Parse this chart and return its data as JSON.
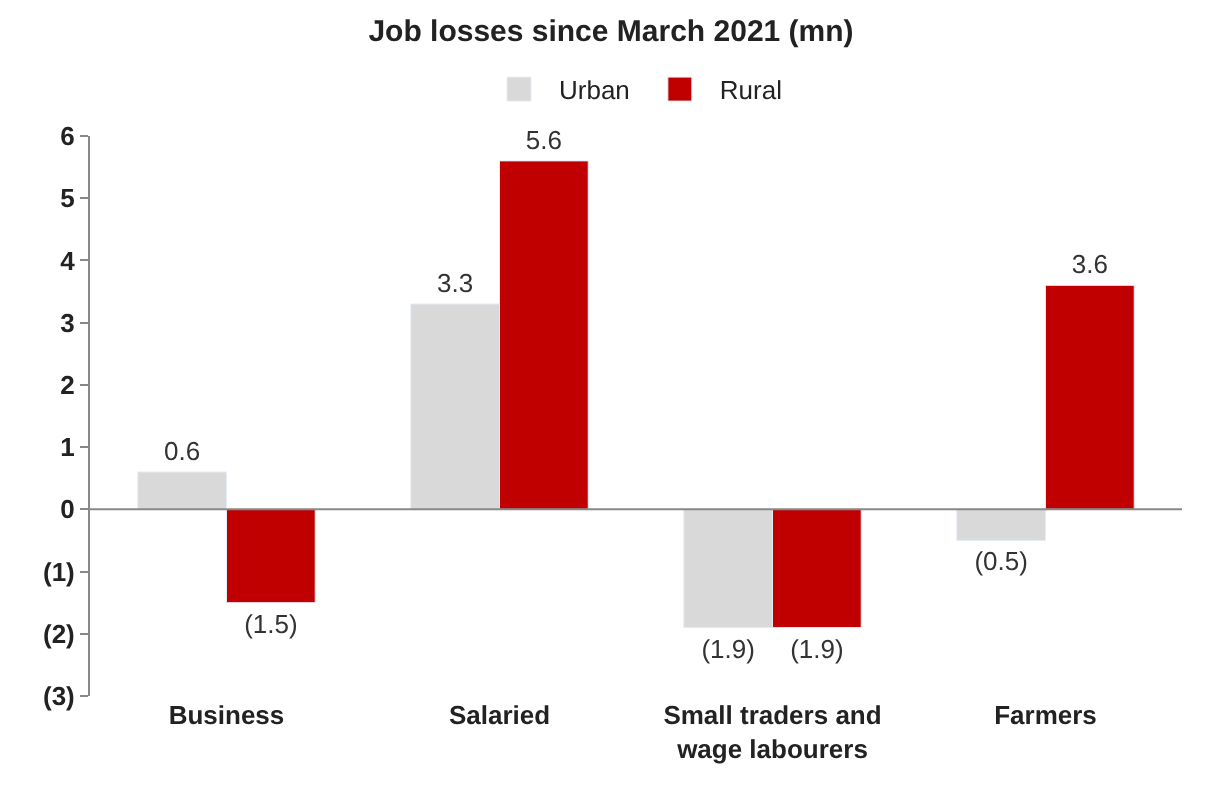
{
  "chart_data": {
    "type": "bar",
    "title": "Job losses since March 2021 (mn)",
    "categories": [
      "Business",
      "Salaried",
      "Small traders and wage labourers",
      "Farmers"
    ],
    "series": [
      {
        "name": "Urban",
        "color": "#d9d9d9",
        "values": [
          0.6,
          3.3,
          -1.9,
          -0.5
        ],
        "value_labels": [
          "0.6",
          "3.3",
          "(1.9)",
          "(0.5)"
        ]
      },
      {
        "name": "Rural",
        "color": "#c00000",
        "values": [
          -1.5,
          5.6,
          -1.9,
          3.6
        ],
        "value_labels": [
          "(1.5)",
          "5.6",
          "(1.9)",
          "3.6"
        ]
      }
    ],
    "ylim": [
      -3,
      6
    ],
    "yticks": [
      {
        "value": -3,
        "label": "(3)"
      },
      {
        "value": -2,
        "label": "(2)"
      },
      {
        "value": -1,
        "label": "(1)"
      },
      0,
      1,
      2,
      3,
      4,
      5,
      6
    ],
    "legend": "top"
  }
}
